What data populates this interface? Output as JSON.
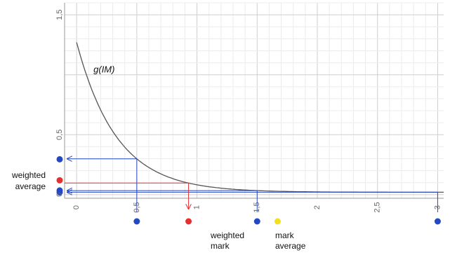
{
  "chart_data": {
    "type": "line",
    "xlim": [
      -0.1,
      3.05
    ],
    "ylim": [
      -0.03,
      1.6
    ],
    "grid": true,
    "x_ticks": [
      {
        "value": 0,
        "label": "0"
      },
      {
        "value": 0.5,
        "label": "0,5"
      },
      {
        "value": 1,
        "label": "1"
      },
      {
        "value": 1.5,
        "label": "1,5"
      },
      {
        "value": 2,
        "label": "2"
      },
      {
        "value": 2.5,
        "label": "2,5"
      },
      {
        "value": 3,
        "label": "3"
      }
    ],
    "y_ticks": [
      {
        "value": 0,
        "label": "0"
      },
      {
        "value": 0.5,
        "label": "0,5"
      },
      {
        "value": 1.5,
        "label": "1,5"
      }
    ],
    "curve": {
      "label": "g(IM)",
      "color": "#555555",
      "function": "1.25 * exp(-3 * x) + 0.02"
    },
    "marks_x": [
      {
        "x": 0.5,
        "color": "#2447c4"
      },
      {
        "x": 1.5,
        "color": "#2447c4"
      },
      {
        "x": 3.0,
        "color": "#2447c4"
      }
    ],
    "weighted_mark_x": {
      "x": 0.93,
      "color": "#e53030",
      "label": [
        "weighted",
        "mark"
      ]
    },
    "mark_average_x": {
      "x": 1.67,
      "color": "#f2e020",
      "label": [
        "mark",
        "average"
      ]
    },
    "marks_y": [
      {
        "y": 0.295,
        "color": "#2447c4"
      },
      {
        "y": 0.035,
        "color": "#2447c4"
      },
      {
        "y": 0.02,
        "color": "#2447c4"
      }
    ],
    "weighted_average_y": {
      "y": 0.12,
      "color": "#e53030",
      "label": [
        "weighted",
        "average"
      ]
    }
  }
}
